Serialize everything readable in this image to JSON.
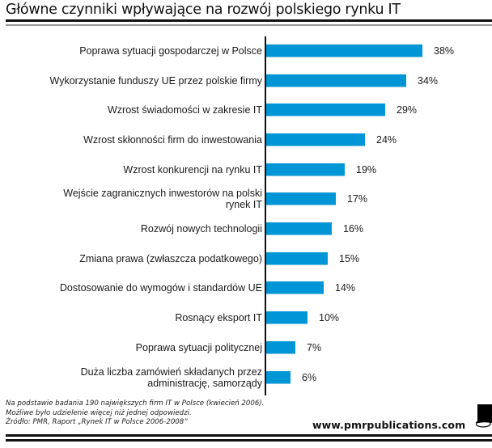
{
  "header": {
    "title": "Główne czynniki wpływające na rozwój polskiego rynku IT"
  },
  "chart_data": {
    "type": "bar",
    "orientation": "horizontal",
    "title": "Główne czynniki wpływające na rozwój polskiego rynku IT",
    "xlabel": "",
    "ylabel": "",
    "unit": "%",
    "xlim": [
      0,
      40
    ],
    "grid": false,
    "legend": null,
    "bar_color": "#0096d6",
    "categories": [
      "Poprawa sytuacji gospodarczej w Polsce",
      "Wykorzystanie funduszy UE przez polskie firmy",
      "Wzrost świadomości w zakresie IT",
      "Wzrost skłonności firm do inwestowania",
      "Wzrost konkurencji na rynku IT",
      "Wejście zagranicznych inwestorów na polski rynek IT",
      "Rozwój nowych technologii",
      "Zmiana prawa (zwłaszcza podatkowego)",
      "Dostosowanie do wymogów i standardów UE",
      "Rosnący eksport IT",
      "Poprawa sytuacji politycznej",
      "Duża liczba zamówień składanych przez administrację, samorządy"
    ],
    "values": [
      38,
      34,
      29,
      24,
      19,
      17,
      16,
      15,
      14,
      10,
      7,
      6
    ]
  },
  "rows": [
    {
      "label_lines": [
        "Poprawa sytuacji gospodarczej w Polsce"
      ],
      "value": 38,
      "value_label": "38%"
    },
    {
      "label_lines": [
        "Wykorzystanie funduszy UE przez polskie firmy"
      ],
      "value": 34,
      "value_label": "34%"
    },
    {
      "label_lines": [
        "Wzrost świadomości w zakresie IT"
      ],
      "value": 29,
      "value_label": "29%"
    },
    {
      "label_lines": [
        "Wzrost skłonności firm do inwestowania"
      ],
      "value": 24,
      "value_label": "24%"
    },
    {
      "label_lines": [
        "Wzrost konkurencji na rynku IT"
      ],
      "value": 19,
      "value_label": "19%"
    },
    {
      "label_lines": [
        "Wejście zagranicznych inwestorów na polski",
        "rynek IT"
      ],
      "value": 17,
      "value_label": "17%"
    },
    {
      "label_lines": [
        "Rozwój nowych technologii"
      ],
      "value": 16,
      "value_label": "16%"
    },
    {
      "label_lines": [
        "Zmiana prawa (zwłaszcza podatkowego)"
      ],
      "value": 15,
      "value_label": "15%"
    },
    {
      "label_lines": [
        "Dostosowanie do wymogów i standardów UE"
      ],
      "value": 14,
      "value_label": "14%"
    },
    {
      "label_lines": [
        "Rosnący eksport IT"
      ],
      "value": 10,
      "value_label": "10%"
    },
    {
      "label_lines": [
        "Poprawa sytuacji politycznej"
      ],
      "value": 7,
      "value_label": "7%"
    },
    {
      "label_lines": [
        "Duża liczba zamówień składanych przez",
        "administrację, samorządy"
      ],
      "value": 6,
      "value_label": "6%"
    }
  ],
  "footer": {
    "notes": [
      "Na podstawie badania 190 największych firm IT w Polsce (kwiecień 2006).",
      "Możliwe było udzielenie więcej niż jednej odpowiedzi.",
      "Źródło: PMR, Raport „Rynek IT w Polsce 2006-2008”"
    ],
    "brand_url": "www.pmrpublications.com",
    "logo_icon": "pmr-logo-icon"
  },
  "colors": {
    "bar": "#0096d6",
    "rule": "#111111",
    "rule_secondary": "#9a9a9a"
  }
}
